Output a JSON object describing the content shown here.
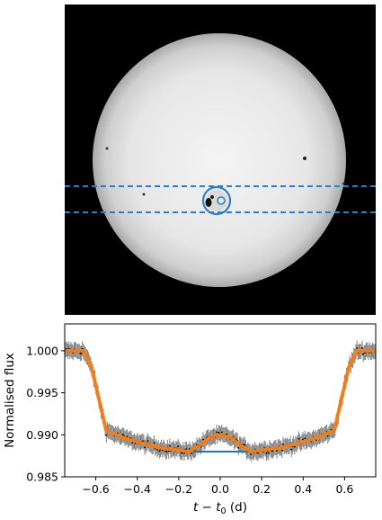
{
  "chart_data": [
    {
      "type": "image",
      "description_of": "solar disk with transiting planet",
      "band_lines": "dashed",
      "band_color": "#2f7fc1"
    },
    {
      "type": "line",
      "xlabel_main": "t − t",
      "xlabel_sub": "0",
      "xlabel_unit": " (d)",
      "ylabel": "Normalised flux",
      "xlim": [
        -0.75,
        0.75
      ],
      "ylim": [
        0.985,
        1.0032
      ],
      "x_ticks": [
        -0.6,
        -0.4,
        -0.2,
        0.0,
        0.2,
        0.4,
        0.6
      ],
      "x_tick_labels": [
        "−0.6",
        "−0.4",
        "−0.2",
        "0.0",
        "0.2",
        "0.4",
        "0.6"
      ],
      "y_ticks": [
        0.985,
        0.99,
        0.995,
        1.0
      ],
      "y_tick_labels": [
        "0.985",
        "0.990",
        "0.995",
        "1.000"
      ],
      "grid": false,
      "series": [
        {
          "role": "transit model",
          "color": "#1f77b4",
          "x": [
            -0.75,
            -0.66,
            -0.62,
            -0.55,
            -0.45,
            -0.3,
            -0.15,
            0.15,
            0.3,
            0.45,
            0.55,
            0.62,
            0.66,
            0.75
          ],
          "y": [
            1.0,
            1.0,
            0.998,
            0.9905,
            0.9895,
            0.9885,
            0.988,
            0.988,
            0.9885,
            0.9895,
            0.9905,
            0.998,
            1.0,
            1.0
          ]
        },
        {
          "role": "model with spot-crossing bump",
          "color": "#ff7f0e",
          "x": [
            -0.75,
            -0.66,
            -0.62,
            -0.55,
            -0.45,
            -0.3,
            -0.15,
            -0.1,
            -0.05,
            0.0,
            0.05,
            0.1,
            0.15,
            0.3,
            0.45,
            0.55,
            0.62,
            0.66,
            0.75
          ],
          "y": [
            1.0,
            1.0,
            0.998,
            0.9905,
            0.9895,
            0.9885,
            0.988,
            0.9887,
            0.9897,
            0.99,
            0.9897,
            0.9887,
            0.988,
            0.9885,
            0.9895,
            0.9905,
            0.998,
            1.0,
            1.0
          ]
        },
        {
          "role": "observed data with error bars",
          "color": "#7f7f7f",
          "point_color": "#000000",
          "x_range": [
            -0.75,
            0.75
          ],
          "n_points": 300,
          "noise": 0.0004,
          "errorbar": 0.0009
        }
      ]
    }
  ]
}
